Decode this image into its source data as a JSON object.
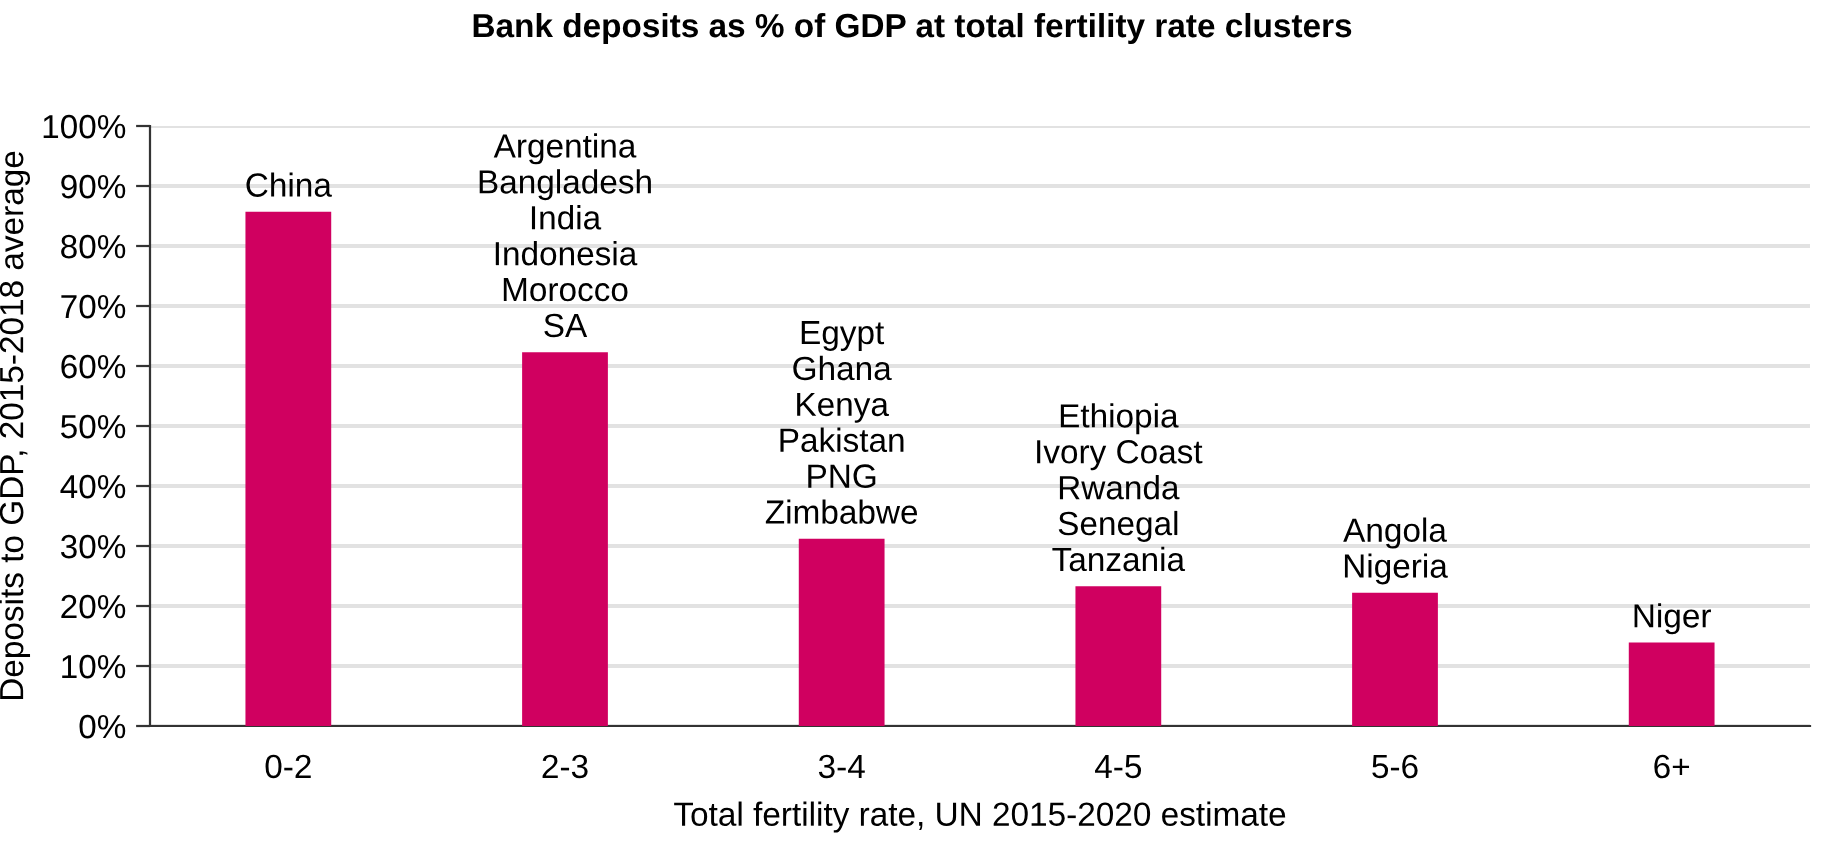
{
  "chart_data": {
    "type": "bar",
    "title": "Bank deposits as % of GDP at total fertility rate clusters",
    "xlabel": "Total fertility rate, UN 2015-2020 estimate",
    "ylabel": "Deposits to GDP, 2015-2018 average",
    "categories": [
      "0-2",
      "2-3",
      "3-4",
      "4-5",
      "5-6",
      "6+"
    ],
    "values": [
      85.7,
      62.3,
      31.2,
      23.3,
      22.2,
      13.9
    ],
    "color": "#d00060",
    "ylim": [
      0,
      100
    ],
    "yticks": [
      {
        "value": 0,
        "label": "0%"
      },
      {
        "value": 10,
        "label": "10%"
      },
      {
        "value": 20,
        "label": "20%"
      },
      {
        "value": 30,
        "label": "30%"
      },
      {
        "value": 40,
        "label": "40%"
      },
      {
        "value": 50,
        "label": "50%"
      },
      {
        "value": 60,
        "label": "60%"
      },
      {
        "value": 70,
        "label": "70%"
      },
      {
        "value": 80,
        "label": "80%"
      },
      {
        "value": 90,
        "label": "90%"
      },
      {
        "value": 100,
        "label": "100%"
      }
    ],
    "grid": "y",
    "legend": false,
    "annotations": [
      {
        "text": "China",
        "x": "0-2",
        "y": 85.7
      },
      {
        "text": "Argentina\nBangladesh\nIndia\nIndonesia\nMorocco\nSA",
        "x": "2-3",
        "y": 62.3
      },
      {
        "text": "Egypt\nGhana\nKenya\nPakistan\nPNG\nZimbabwe",
        "x": "3-4",
        "y": 31.2
      },
      {
        "text": "Ethiopia\nIvory Coast\nRwanda\nSenegal\nTanzania",
        "x": "4-5",
        "y": 23.3
      },
      {
        "text": "Angola\nNigeria",
        "x": "5-6",
        "y": 22.2
      },
      {
        "text": "Niger",
        "x": "6+",
        "y": 13.9
      }
    ]
  }
}
